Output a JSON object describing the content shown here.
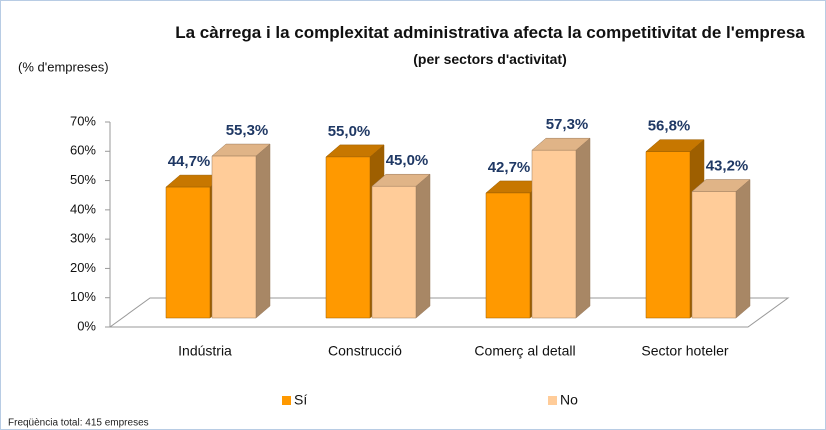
{
  "chart_data": {
    "type": "bar3d",
    "title": "La càrrega i la complexitat administrativa afecta la competitivitat de l'empresa",
    "subtitle": "(per sectors d'activitat)",
    "y_label": "(% d'empreses)",
    "footnote": "Freqüència total: 415 empreses",
    "categories": [
      "Indústria",
      "Construcció",
      "Comerç al detall",
      "Sector hoteler"
    ],
    "series": [
      {
        "name": "Sí",
        "color": "#ff9900",
        "values": [
          44.7,
          55.0,
          42.7,
          56.8
        ],
        "value_labels": [
          "44,7%",
          "55,0%",
          "42,7%",
          "56,8%"
        ]
      },
      {
        "name": "No",
        "color": "#ffcc99",
        "values": [
          55.3,
          45.0,
          57.3,
          43.2
        ],
        "value_labels": [
          "55,3%",
          "45,0%",
          "57,3%",
          "43,2%"
        ]
      }
    ],
    "ylim": [
      0,
      70
    ],
    "yticks": [
      {
        "value": 0,
        "label": "0%"
      },
      {
        "value": 10,
        "label": "10%"
      },
      {
        "value": 20,
        "label": "20%"
      },
      {
        "value": 30,
        "label": "30%"
      },
      {
        "value": 40,
        "label": "40%"
      },
      {
        "value": 50,
        "label": "50%"
      },
      {
        "value": 60,
        "label": "60%"
      },
      {
        "value": 70,
        "label": "70%"
      }
    ],
    "legend": "bottom"
  }
}
